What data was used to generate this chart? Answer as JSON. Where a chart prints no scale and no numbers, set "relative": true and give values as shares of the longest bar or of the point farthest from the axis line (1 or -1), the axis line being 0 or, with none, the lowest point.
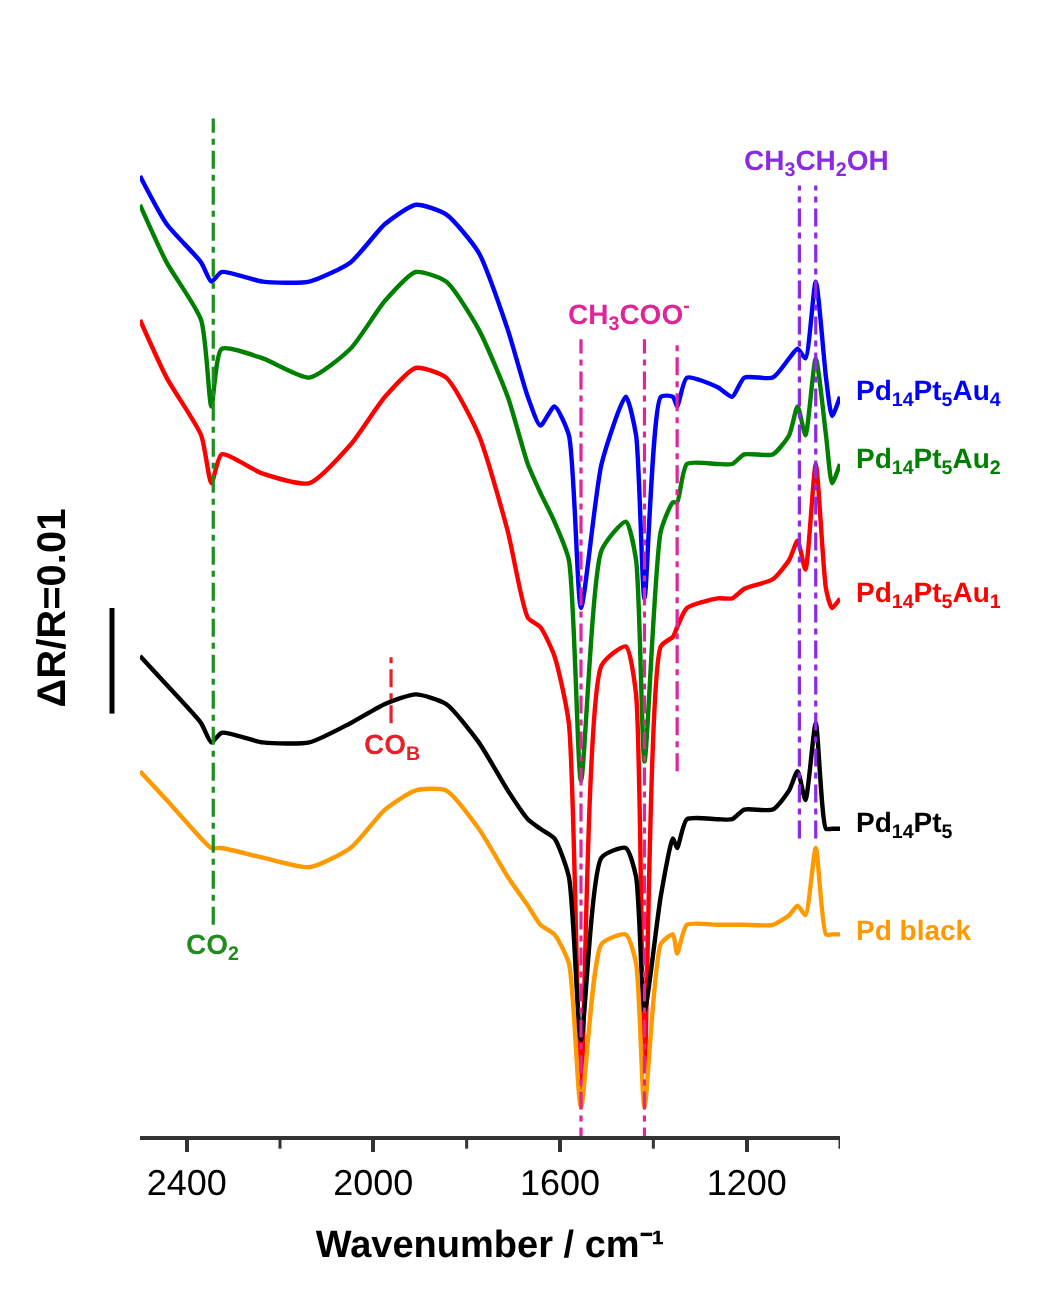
{
  "chart_data": {
    "type": "line",
    "relative": true,
    "xlabel": "Wavenumber / cm⁻¹",
    "ylabel": "ΔR/R=0.01",
    "x": [
      2500,
      2443,
      2369,
      2347,
      2325,
      2237,
      2137,
      2049,
      1975,
      1909,
      1844,
      1774,
      1712,
      1669,
      1642,
      1612,
      1581,
      1555,
      1511,
      1459,
      1437,
      1419,
      1384,
      1358,
      1349,
      1328,
      1262,
      1231,
      1205,
      1144,
      1109,
      1091,
      1074,
      1052,
      1030,
      1017,
      1000
    ],
    "xlim": [
      2500,
      1000
    ],
    "xticks": [
      2400,
      {
        "value": 2200,
        "label": null
      },
      2000,
      {
        "value": 1800,
        "label": null
      },
      1600,
      {
        "value": 1400,
        "label": null
      },
      1200,
      {
        "value": 1000,
        "label": null
      }
    ],
    "series": [
      {
        "name": "Pd$_{14}$Pt$_{5}$Au$_{4}$",
        "color": "#0000ff",
        "values": [
          1.0,
          0.95,
          0.91,
          0.89,
          0.9,
          0.89,
          0.89,
          0.91,
          0.95,
          0.97,
          0.96,
          0.92,
          0.84,
          0.77,
          0.74,
          0.76,
          0.73,
          0.55,
          0.7,
          0.77,
          0.73,
          0.56,
          0.77,
          0.77,
          0.76,
          0.79,
          0.78,
          0.77,
          0.79,
          0.79,
          0.81,
          0.82,
          0.81,
          0.89,
          0.79,
          0.75,
          0.77
        ]
      },
      {
        "name": "Pd$_{14}$Pt$_{5}$Au$_{2}$",
        "color": "#008000",
        "values": [
          0.97,
          0.91,
          0.85,
          0.76,
          0.82,
          0.81,
          0.79,
          0.82,
          0.87,
          0.9,
          0.89,
          0.84,
          0.77,
          0.7,
          0.67,
          0.64,
          0.6,
          0.37,
          0.61,
          0.64,
          0.6,
          0.39,
          0.63,
          0.66,
          0.66,
          0.7,
          0.7,
          0.7,
          0.71,
          0.71,
          0.73,
          0.76,
          0.73,
          0.81,
          0.73,
          0.68,
          0.7
        ]
      },
      {
        "name": "Pd$_{14}$Pt$_{5}$Au$_{1}$",
        "color": "#ff0000",
        "values": [
          0.85,
          0.79,
          0.73,
          0.68,
          0.71,
          0.69,
          0.68,
          0.72,
          0.77,
          0.8,
          0.79,
          0.73,
          0.63,
          0.54,
          0.53,
          0.5,
          0.43,
          0.05,
          0.49,
          0.51,
          0.46,
          0.07,
          0.51,
          0.52,
          0.53,
          0.55,
          0.56,
          0.56,
          0.57,
          0.58,
          0.6,
          0.62,
          0.59,
          0.7,
          0.57,
          0.55,
          0.56
        ]
      },
      {
        "name": "Pd$_{14}$Pt$_{5}$",
        "color": "#000000",
        "values": [
          0.5,
          0.47,
          0.43,
          0.41,
          0.42,
          0.41,
          0.41,
          0.43,
          0.45,
          0.46,
          0.45,
          0.41,
          0.36,
          0.33,
          0.32,
          0.31,
          0.27,
          0.1,
          0.29,
          0.3,
          0.27,
          0.13,
          0.25,
          0.31,
          0.3,
          0.33,
          0.33,
          0.33,
          0.34,
          0.34,
          0.36,
          0.38,
          0.35,
          0.43,
          0.32,
          0.32,
          0.32
        ]
      },
      {
        "name": "Pd black",
        "color": "#ff9900",
        "values": [
          0.38,
          0.35,
          0.31,
          0.3,
          0.3,
          0.29,
          0.28,
          0.3,
          0.34,
          0.36,
          0.36,
          0.32,
          0.27,
          0.24,
          0.22,
          0.21,
          0.18,
          0.03,
          0.2,
          0.21,
          0.18,
          0.03,
          0.2,
          0.21,
          0.19,
          0.22,
          0.22,
          0.22,
          0.22,
          0.22,
          0.23,
          0.24,
          0.23,
          0.3,
          0.21,
          0.21,
          0.21
        ]
      }
    ],
    "ref_lines": [
      {
        "axis": "x",
        "value": 2343,
        "label": "CO$_{2}$",
        "color": "#1e8c1e",
        "line_style": "dashdot"
      },
      {
        "axis": "x",
        "value": 1962,
        "label": "CO$_{B}$",
        "color": "#e8202a",
        "line_style": "dashdot"
      },
      {
        "axis": "x",
        "value": 1555,
        "label": null,
        "color": "#e0249a",
        "line_style": "dashdot"
      },
      {
        "axis": "x",
        "value": 1419,
        "label": "CH$_{3}$COO$^{-}$",
        "color": "#e0249a",
        "line_style": "dashdot"
      },
      {
        "axis": "x",
        "value": 1349,
        "label": null,
        "color": "#e0249a",
        "line_style": "dashdot"
      },
      {
        "axis": "x",
        "value": 1087,
        "label": "CH$_{3}$CH$_{2}$OH",
        "color": "#8a2be2",
        "line_style": "dashdot"
      },
      {
        "axis": "x",
        "value": 1052,
        "label": null,
        "color": "#8a2be2",
        "line_style": "dashdot"
      }
    ],
    "legend": false,
    "marker": "none",
    "line_style": "solid"
  }
}
